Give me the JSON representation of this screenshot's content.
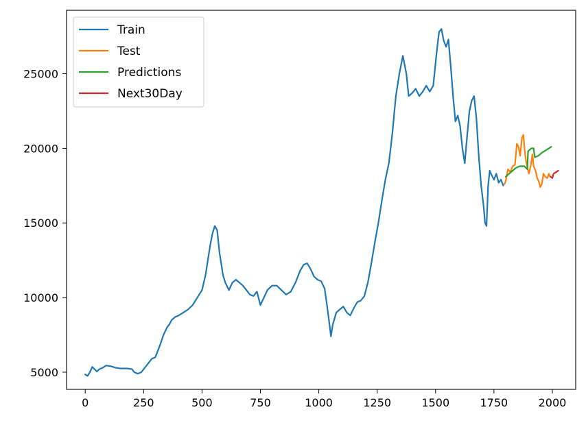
{
  "chart_data": {
    "type": "line",
    "title": "",
    "xlabel": "",
    "ylabel": "",
    "xlim": [
      -80,
      2100
    ],
    "ylim": [
      3850,
      29250
    ],
    "grid": false,
    "legend_position": "top-left",
    "x_ticks": [
      0,
      250,
      500,
      750,
      1000,
      1250,
      1500,
      1750,
      2000
    ],
    "y_ticks": [
      5000,
      10000,
      15000,
      20000,
      25000
    ],
    "series": [
      {
        "name": "Train",
        "color": "#1f77b4",
        "points": [
          [
            0,
            4850
          ],
          [
            10,
            4750
          ],
          [
            20,
            5000
          ],
          [
            30,
            5350
          ],
          [
            40,
            5200
          ],
          [
            50,
            5050
          ],
          [
            60,
            5200
          ],
          [
            75,
            5300
          ],
          [
            90,
            5450
          ],
          [
            110,
            5400
          ],
          [
            130,
            5300
          ],
          [
            150,
            5250
          ],
          [
            180,
            5250
          ],
          [
            200,
            5200
          ],
          [
            210,
            5000
          ],
          [
            225,
            4900
          ],
          [
            240,
            5000
          ],
          [
            255,
            5300
          ],
          [
            270,
            5600
          ],
          [
            285,
            5900
          ],
          [
            300,
            6000
          ],
          [
            320,
            6800
          ],
          [
            335,
            7500
          ],
          [
            350,
            8000
          ],
          [
            360,
            8200
          ],
          [
            370,
            8500
          ],
          [
            385,
            8700
          ],
          [
            400,
            8800
          ],
          [
            420,
            9000
          ],
          [
            440,
            9200
          ],
          [
            460,
            9500
          ],
          [
            480,
            10000
          ],
          [
            500,
            10500
          ],
          [
            515,
            11500
          ],
          [
            525,
            12500
          ],
          [
            535,
            13500
          ],
          [
            545,
            14300
          ],
          [
            555,
            14800
          ],
          [
            565,
            14500
          ],
          [
            575,
            13000
          ],
          [
            590,
            11500
          ],
          [
            600,
            11000
          ],
          [
            615,
            10500
          ],
          [
            630,
            11000
          ],
          [
            645,
            11200
          ],
          [
            660,
            11000
          ],
          [
            675,
            10800
          ],
          [
            690,
            10500
          ],
          [
            705,
            10200
          ],
          [
            720,
            10100
          ],
          [
            735,
            10400
          ],
          [
            750,
            9500
          ],
          [
            765,
            10000
          ],
          [
            780,
            10500
          ],
          [
            800,
            10800
          ],
          [
            820,
            10800
          ],
          [
            840,
            10500
          ],
          [
            860,
            10200
          ],
          [
            880,
            10400
          ],
          [
            900,
            11000
          ],
          [
            920,
            11800
          ],
          [
            935,
            12200
          ],
          [
            950,
            12300
          ],
          [
            965,
            11900
          ],
          [
            980,
            11400
          ],
          [
            995,
            11200
          ],
          [
            1010,
            11100
          ],
          [
            1025,
            10600
          ],
          [
            1035,
            9500
          ],
          [
            1045,
            8300
          ],
          [
            1052,
            7400
          ],
          [
            1060,
            8200
          ],
          [
            1075,
            9000
          ],
          [
            1090,
            9200
          ],
          [
            1105,
            9400
          ],
          [
            1120,
            9000
          ],
          [
            1135,
            8800
          ],
          [
            1150,
            9300
          ],
          [
            1165,
            9700
          ],
          [
            1180,
            9800
          ],
          [
            1195,
            10100
          ],
          [
            1210,
            11000
          ],
          [
            1225,
            12300
          ],
          [
            1240,
            13700
          ],
          [
            1255,
            15000
          ],
          [
            1270,
            16500
          ],
          [
            1285,
            17900
          ],
          [
            1300,
            19000
          ],
          [
            1315,
            21000
          ],
          [
            1330,
            23500
          ],
          [
            1345,
            25000
          ],
          [
            1360,
            26200
          ],
          [
            1375,
            25000
          ],
          [
            1385,
            23500
          ],
          [
            1400,
            23700
          ],
          [
            1415,
            24000
          ],
          [
            1430,
            23500
          ],
          [
            1445,
            23800
          ],
          [
            1460,
            24200
          ],
          [
            1475,
            23800
          ],
          [
            1490,
            24200
          ],
          [
            1505,
            26500
          ],
          [
            1515,
            27800
          ],
          [
            1525,
            28000
          ],
          [
            1535,
            27200
          ],
          [
            1545,
            26800
          ],
          [
            1555,
            27300
          ],
          [
            1565,
            25500
          ],
          [
            1575,
            23500
          ],
          [
            1585,
            21800
          ],
          [
            1595,
            22200
          ],
          [
            1605,
            21500
          ],
          [
            1615,
            20000
          ],
          [
            1625,
            19000
          ],
          [
            1635,
            20800
          ],
          [
            1645,
            22500
          ],
          [
            1655,
            23200
          ],
          [
            1665,
            23500
          ],
          [
            1675,
            22000
          ],
          [
            1685,
            19500
          ],
          [
            1695,
            17500
          ],
          [
            1705,
            16200
          ],
          [
            1712,
            15000
          ],
          [
            1718,
            14800
          ],
          [
            1725,
            17500
          ],
          [
            1732,
            18500
          ],
          [
            1740,
            18200
          ],
          [
            1750,
            17900
          ],
          [
            1760,
            18300
          ],
          [
            1770,
            17700
          ],
          [
            1780,
            17900
          ],
          [
            1790,
            17500
          ]
        ]
      },
      {
        "name": "Test",
        "color": "#ff7f0e",
        "points": [
          [
            1795,
            17600
          ],
          [
            1800,
            17800
          ],
          [
            1810,
            18600
          ],
          [
            1820,
            18400
          ],
          [
            1830,
            18800
          ],
          [
            1840,
            18900
          ],
          [
            1848,
            20300
          ],
          [
            1855,
            20100
          ],
          [
            1862,
            19500
          ],
          [
            1870,
            20700
          ],
          [
            1876,
            20900
          ],
          [
            1882,
            19800
          ],
          [
            1888,
            19100
          ],
          [
            1895,
            18600
          ],
          [
            1900,
            18300
          ],
          [
            1908,
            18900
          ],
          [
            1915,
            19600
          ],
          [
            1920,
            18800
          ],
          [
            1928,
            18500
          ],
          [
            1935,
            18000
          ],
          [
            1942,
            17800
          ],
          [
            1948,
            17400
          ],
          [
            1955,
            17600
          ],
          [
            1962,
            18300
          ],
          [
            1970,
            18100
          ],
          [
            1978,
            18000
          ],
          [
            1985,
            18300
          ],
          [
            1990,
            18100
          ]
        ]
      },
      {
        "name": "Predictions",
        "color": "#2ca02c",
        "points": [
          [
            1800,
            18100
          ],
          [
            1815,
            18300
          ],
          [
            1830,
            18500
          ],
          [
            1845,
            18700
          ],
          [
            1860,
            18800
          ],
          [
            1880,
            18800
          ],
          [
            1893,
            18600
          ],
          [
            1896,
            19800
          ],
          [
            1910,
            20000
          ],
          [
            1920,
            20000
          ],
          [
            1925,
            19400
          ],
          [
            1940,
            19500
          ],
          [
            1955,
            19700
          ],
          [
            1965,
            19800
          ],
          [
            1975,
            19900
          ],
          [
            1985,
            20000
          ],
          [
            1995,
            20100
          ]
        ]
      },
      {
        "name": "Next30Day",
        "color": "#d62728",
        "points": [
          [
            1993,
            18100
          ],
          [
            2000,
            18000
          ],
          [
            2005,
            18300
          ],
          [
            2015,
            18400
          ],
          [
            2025,
            18500
          ]
        ]
      }
    ]
  }
}
